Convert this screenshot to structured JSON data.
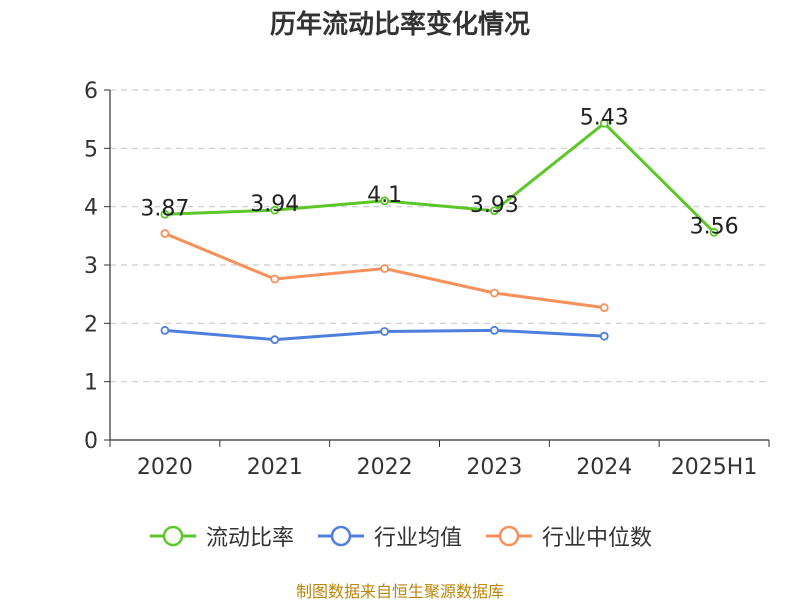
{
  "chart_data": {
    "type": "line",
    "title": "历年流动比率变化情况",
    "categories": [
      "2020",
      "2021",
      "2022",
      "2023",
      "2024",
      "2025H1"
    ],
    "ylim": [
      0,
      6
    ],
    "yticks": [
      "0",
      "1",
      "2",
      "3",
      "4",
      "5",
      "6"
    ],
    "grid": true,
    "legend_position": "bottom",
    "series": [
      {
        "name": "流动比率",
        "color": "#5cc728",
        "values": [
          3.87,
          3.94,
          4.1,
          3.93,
          5.43,
          3.56
        ],
        "labels": [
          "3.87",
          "3.94",
          "4.1",
          "3.93",
          "5.43",
          "3.56"
        ]
      },
      {
        "name": "行业均值",
        "color": "#4e7fdc",
        "values": [
          1.88,
          1.72,
          1.86,
          1.88,
          1.78,
          null
        ]
      },
      {
        "name": "行业中位数",
        "color": "#f7905a",
        "values": [
          3.54,
          2.76,
          2.94,
          2.52,
          2.27,
          null
        ]
      }
    ],
    "source": "制图数据来自恒生聚源数据库"
  }
}
